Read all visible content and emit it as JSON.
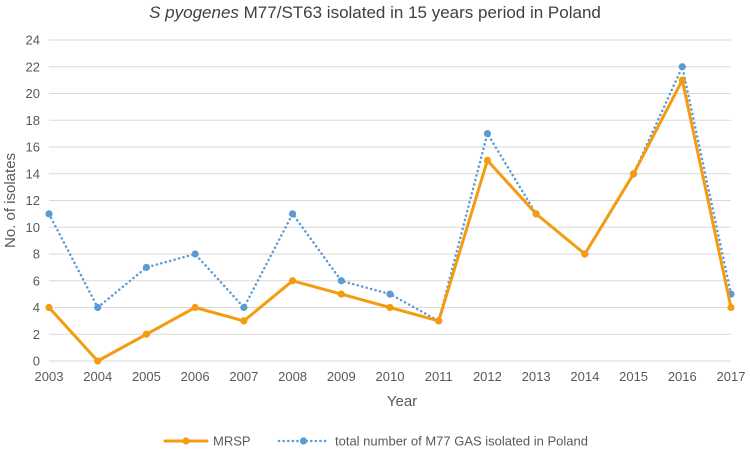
{
  "chart_data": {
    "type": "line",
    "title_italic": "S pyogenes",
    "title_rest": " M77/ST63 isolated in 15 years period in Poland",
    "xlabel": "Year",
    "ylabel": "No. of isolates",
    "ylim": [
      0,
      24
    ],
    "ytick_step": 2,
    "grid": true,
    "legend_position": "bottom",
    "categories": [
      "2003",
      "2004",
      "2005",
      "2006",
      "2007",
      "2008",
      "2009",
      "2010",
      "2011",
      "2012",
      "2013",
      "2014",
      "2015",
      "2016",
      "2017"
    ],
    "series": [
      {
        "name": "MRSP",
        "color": "#F39C12",
        "style": "solid",
        "values": [
          4,
          0,
          2,
          4,
          3,
          6,
          5,
          4,
          3,
          15,
          11,
          8,
          14,
          21,
          4
        ]
      },
      {
        "name": "total number of M77 GAS isolated in Poland",
        "color": "#5B9BD5",
        "style": "dotted",
        "values": [
          11,
          4,
          7,
          8,
          4,
          11,
          6,
          5,
          3,
          17,
          11,
          8,
          14,
          22,
          5
        ]
      }
    ]
  }
}
